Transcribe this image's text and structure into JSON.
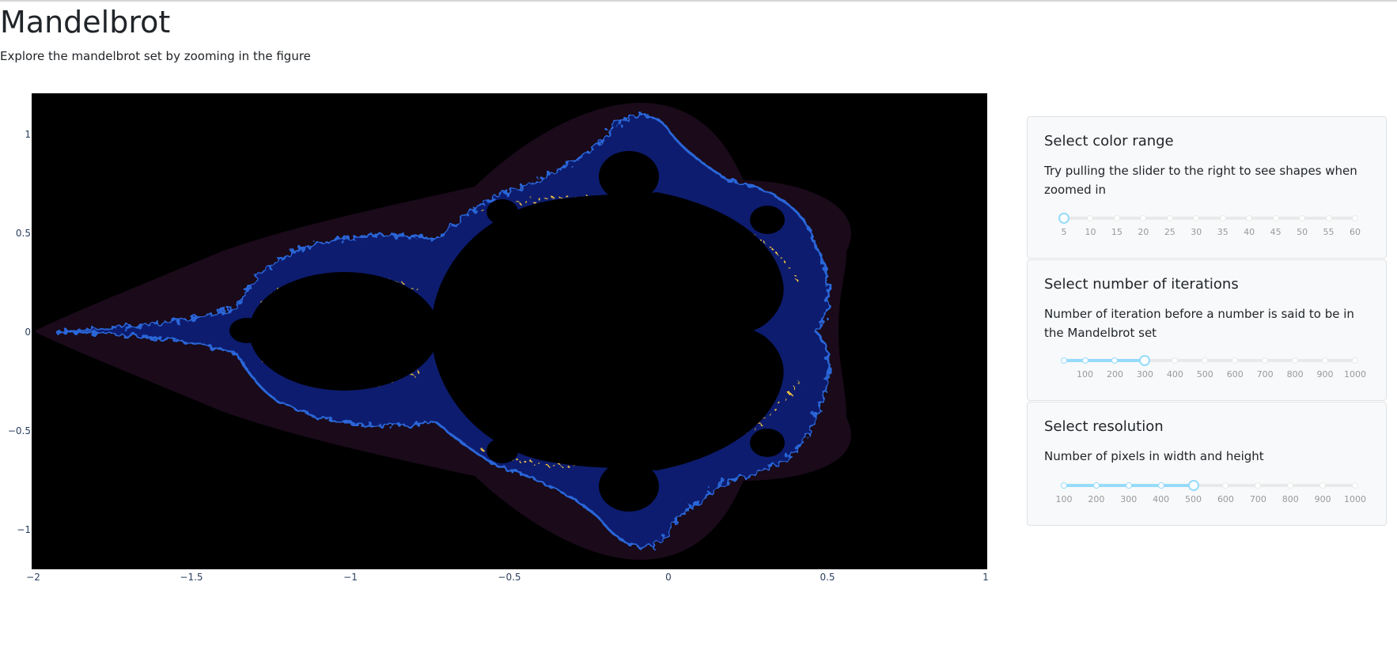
{
  "header": {
    "title": "Mandelbrot",
    "subtitle": "Explore the mandelbrot set by zooming in the figure"
  },
  "figure": {
    "type": "heatmap",
    "x_ticks": [
      "−2",
      "−1.5",
      "−1",
      "−0.5",
      "0",
      "0.5",
      "1"
    ],
    "y_ticks": [
      "1",
      "0.5",
      "0",
      "−0.5",
      "−1"
    ],
    "xlim": [
      -2,
      1
    ],
    "ylim": [
      -1.2,
      1.2
    ],
    "colors": {
      "inside": "#000000",
      "halo": "#1a0a1a",
      "band": "#0a1a6a",
      "edge": "#f4c542"
    }
  },
  "controls": {
    "color_range": {
      "title": "Select color range",
      "description": "Try pulling the slider to the right to see shapes when zoomed in",
      "marks": [
        "5",
        "10",
        "15",
        "20",
        "25",
        "30",
        "35",
        "40",
        "45",
        "50",
        "55",
        "60"
      ],
      "value": 5,
      "min": 5,
      "max": 60
    },
    "iterations": {
      "title": "Select number of iterations",
      "description": "Number of iteration before a number is said to be in the Mandelbrot set",
      "marks": [
        "100",
        "200",
        "300",
        "400",
        "500",
        "600",
        "700",
        "800",
        "900",
        "1000"
      ],
      "value": 300,
      "min": 30,
      "max": 1000
    },
    "resolution": {
      "title": "Select resolution",
      "description": "Number of pixels in width and height",
      "marks": [
        "100",
        "200",
        "300",
        "400",
        "500",
        "600",
        "700",
        "800",
        "900",
        "1000"
      ],
      "value": 500,
      "min": 100,
      "max": 1000
    }
  }
}
